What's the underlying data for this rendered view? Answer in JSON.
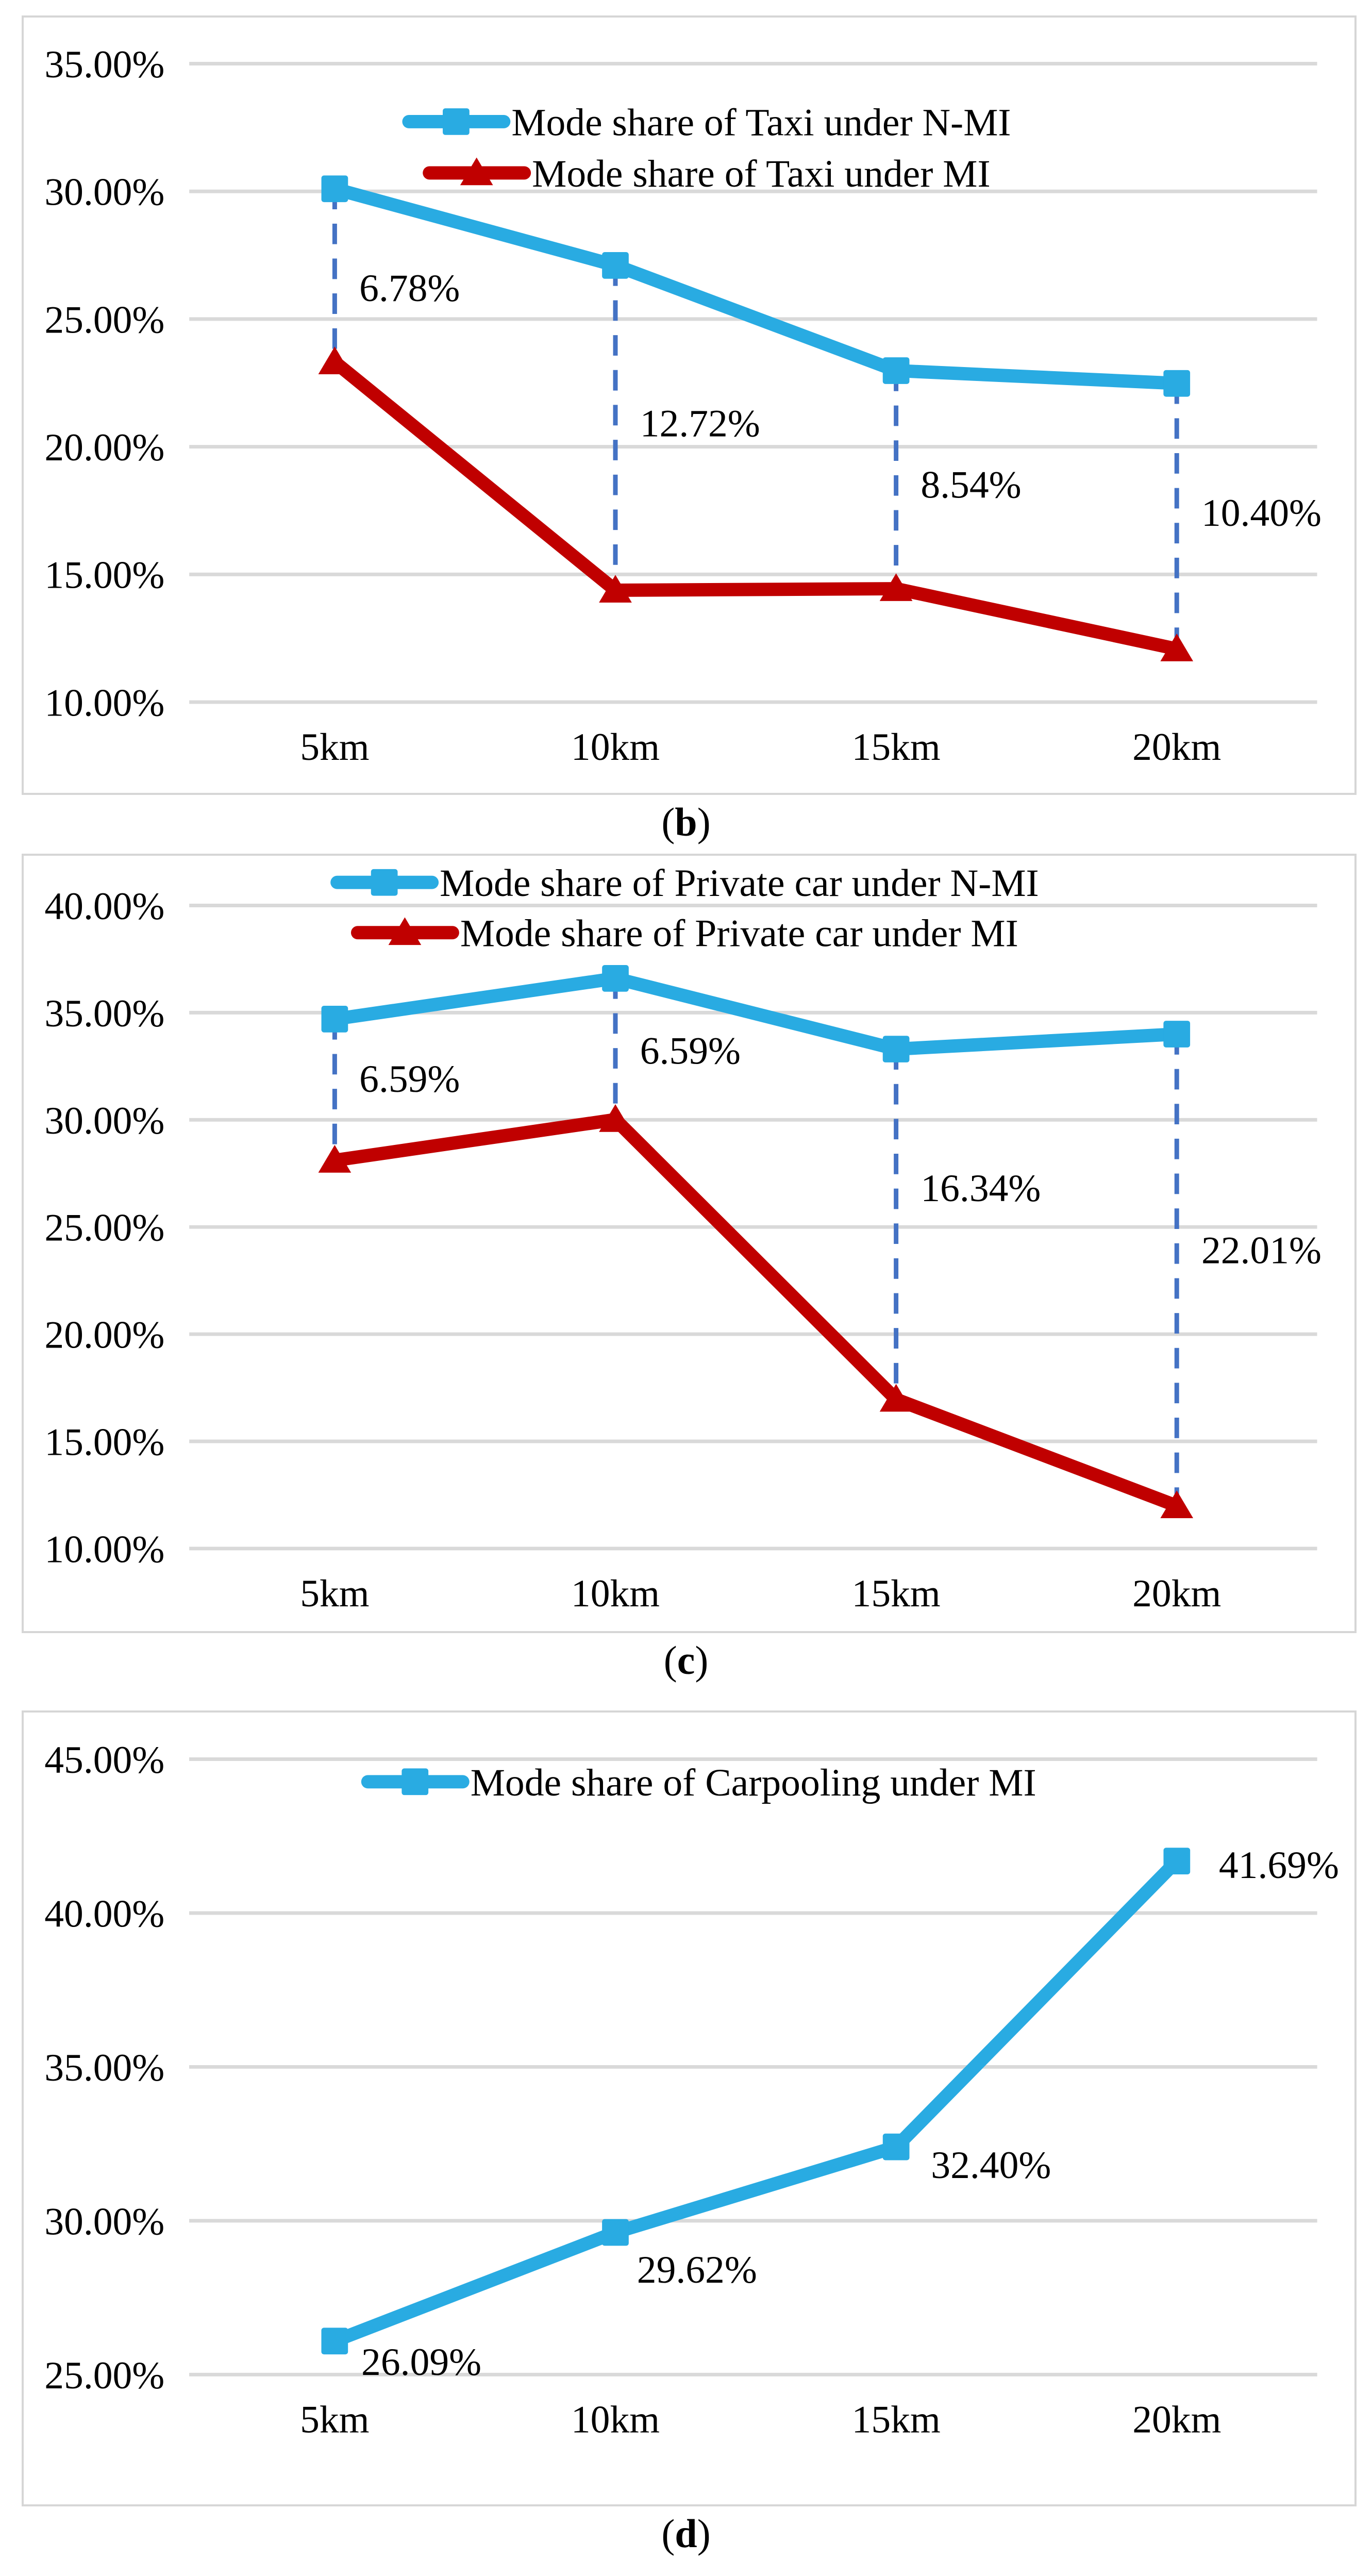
{
  "colors": {
    "nmi_blue": "#29ABE2",
    "mi_red": "#C00000",
    "connector_blue": "#4472C4",
    "gridline_gray": "#D9D9D9",
    "panel_border_gray": "#D6D6D6",
    "text_black": "#000000"
  },
  "chart_data": [
    {
      "id": "b",
      "type": "line",
      "caption": {
        "pre": "(",
        "letter": "b",
        "post": ")"
      },
      "categories": [
        "5km",
        "10km",
        "15km",
        "20km"
      ],
      "y_axis": {
        "min": 10,
        "max": 35,
        "step": 5,
        "grid": true,
        "labels": [
          "35.00%",
          "30.00%",
          "25.00%",
          "20.00%",
          "15.00%",
          "10.00%"
        ]
      },
      "legend_position": "top-center-inside",
      "series": [
        {
          "key": "taxi-nmi",
          "name": "Mode share of Taxi under N-MI",
          "color_ref": "nmi_blue",
          "marker": "square",
          "values": [
            30.1,
            27.1,
            22.98,
            22.48
          ]
        },
        {
          "key": "taxi-mi",
          "name": "Mode share of Taxi under MI",
          "color_ref": "mi_red",
          "marker": "triangle",
          "values": [
            23.32,
            14.38,
            14.44,
            12.08
          ]
        }
      ],
      "gap_annotations": [
        {
          "x_index": 0,
          "label": "6.78%",
          "gap_value": 6.78,
          "label_v": 26.2
        },
        {
          "x_index": 1,
          "label": "12.72%",
          "gap_value": 12.72,
          "label_v": 20.9
        },
        {
          "x_index": 2,
          "label": "8.54%",
          "gap_value": 8.54,
          "label_v": 18.5
        },
        {
          "x_index": 3,
          "label": "10.40%",
          "gap_value": 10.4,
          "label_v": 17.4
        }
      ]
    },
    {
      "id": "c",
      "type": "line",
      "caption": {
        "pre": "(",
        "letter": "c",
        "post": ")"
      },
      "categories": [
        "5km",
        "10km",
        "15km",
        "20km"
      ],
      "y_axis": {
        "min": 10,
        "max": 40,
        "step": 5,
        "grid": true,
        "labels": [
          "40.00%",
          "35.00%",
          "30.00%",
          "25.00%",
          "20.00%",
          "15.00%",
          "10.00%"
        ]
      },
      "legend_position": "top-center-inside",
      "series": [
        {
          "key": "car-nmi",
          "name": "Mode share of Private car under N-MI",
          "color_ref": "nmi_blue",
          "marker": "square",
          "values": [
            34.7,
            36.6,
            33.3,
            34.0
          ]
        },
        {
          "key": "car-mi",
          "name": "Mode share of Private car under MI",
          "color_ref": "mi_red",
          "marker": "triangle",
          "values": [
            28.11,
            30.01,
            16.96,
            11.99
          ]
        }
      ],
      "gap_annotations": [
        {
          "x_index": 0,
          "label": "6.59%",
          "gap_value": 6.59,
          "label_v": 31.9
        },
        {
          "x_index": 1,
          "label": "6.59%",
          "gap_value": 6.59,
          "label_v": 33.2
        },
        {
          "x_index": 2,
          "label": "16.34%",
          "gap_value": 16.34,
          "label_v": 26.8
        },
        {
          "x_index": 3,
          "label": "22.01%",
          "gap_value": 22.01,
          "label_v": 23.9
        }
      ]
    },
    {
      "id": "d",
      "type": "line",
      "caption": {
        "pre": "(",
        "letter": "d",
        "post": ")"
      },
      "categories": [
        "5km",
        "10km",
        "15km",
        "20km"
      ],
      "y_axis": {
        "min": 25,
        "max": 45,
        "step": 5,
        "grid": true,
        "labels": [
          "45.00%",
          "40.00%",
          "35.00%",
          "30.00%",
          "25.00%"
        ]
      },
      "legend_position": "top-center-inside",
      "series": [
        {
          "key": "carpool-mi",
          "name": "Mode share of Carpooling under MI",
          "color_ref": "nmi_blue",
          "marker": "square",
          "values": [
            26.09,
            29.62,
            32.4,
            41.69
          ]
        }
      ],
      "point_labels": [
        {
          "x_index": 0,
          "label": "26.09%",
          "label_v": 25.4,
          "dx": 52
        },
        {
          "x_index": 1,
          "label": "29.62%",
          "label_v": 28.4,
          "dx": 42
        },
        {
          "x_index": 2,
          "label": "32.40%",
          "label_v": 31.8,
          "dx": 68
        },
        {
          "x_index": 3,
          "label": "41.69%",
          "label_v": 41.55,
          "dx": 82
        }
      ]
    }
  ]
}
